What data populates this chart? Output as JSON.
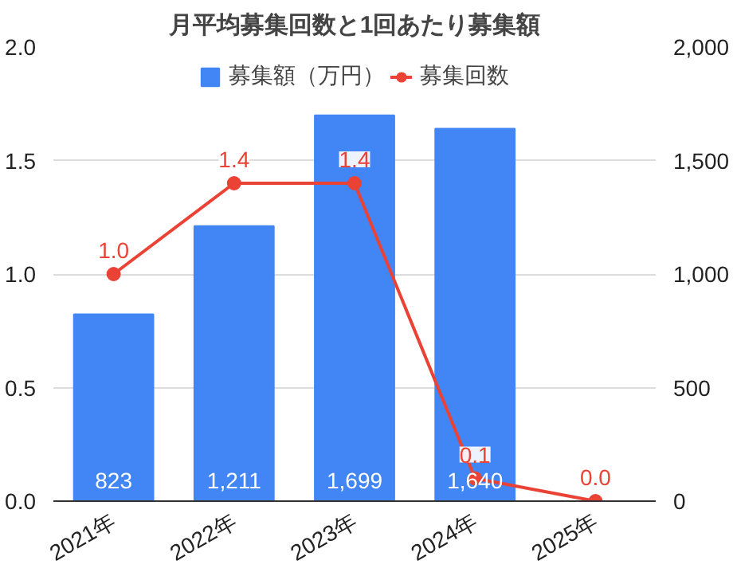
{
  "chart_data": {
    "type": "bar",
    "title": "月平均募集回数と1回あたり募集額",
    "categories": [
      "2021年",
      "2022年",
      "2023年",
      "2024年",
      "2025年"
    ],
    "series": [
      {
        "name": "募集額（万円）",
        "axis": "y2",
        "color": "#4285f4",
        "values": [
          823,
          1211,
          1699,
          1640,
          null
        ],
        "value_labels": [
          "823",
          "1,211",
          "1,699",
          "1,640",
          null
        ]
      },
      {
        "name": "募集回数",
        "type": "line",
        "axis": "y",
        "color": "#ea4335",
        "marker": "circle",
        "values": [
          1.0,
          1.4,
          1.4,
          0.1,
          0.0
        ],
        "value_labels": [
          "1.0",
          "1.4",
          "1.4",
          "0.1",
          "0.0"
        ]
      }
    ],
    "ylim": [
      0,
      2
    ],
    "yticks": [
      {
        "value": 0,
        "label": "0.0"
      },
      {
        "value": 0.5,
        "label": "0.5"
      },
      {
        "value": 1,
        "label": "1.0"
      },
      {
        "value": 1.5,
        "label": "1.5"
      },
      {
        "value": 2,
        "label": "2.0"
      }
    ],
    "y2lim": [
      0,
      2000
    ],
    "y2ticks": [
      0,
      500,
      {
        "value": 1000,
        "label": "1,000"
      },
      {
        "value": 1500,
        "label": "1,500"
      },
      {
        "value": 2000,
        "label": "2,000"
      }
    ],
    "grid": "y",
    "legend": "top"
  }
}
